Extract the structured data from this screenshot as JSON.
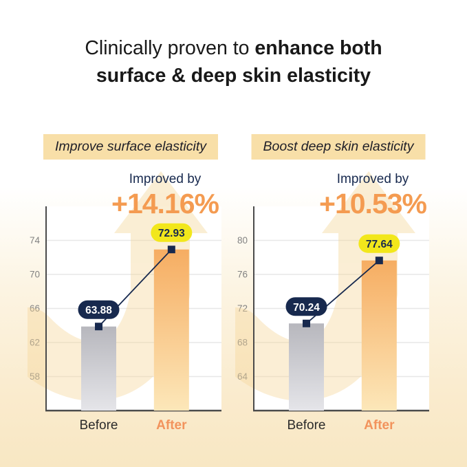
{
  "title": {
    "regular": "Clinically proven to ",
    "bold_suffix": "enhance both",
    "line2": "surface & deep skin elasticity"
  },
  "colors": {
    "accent": "#F2935C",
    "percent_orange": "#F49B51",
    "navy": "#17294E",
    "yellow": "#F2E71B",
    "chip_bg": "#F8DFA8",
    "plot_bg": "#FFFFFF",
    "gridline": "#E7E7E7",
    "axis": "#4A4A4A",
    "tick_text": "#828282",
    "before_label": "#2B2B2B",
    "arrow": "#F5D79B",
    "bar_before_top": "#B7B7BD",
    "bar_before_bottom": "#E5E5E9",
    "bar_after_top": "#F6AD62",
    "bar_after_bottom": "#FCE7B9"
  },
  "panels": [
    {
      "header": "Improve surface elasticity",
      "improved_label": "Improved by",
      "improvement": "+14.16%",
      "chart_data": {
        "type": "bar",
        "categories": [
          "Before",
          "After"
        ],
        "values": [
          63.88,
          72.93
        ],
        "labels": [
          "63.88",
          "72.93"
        ],
        "yticks": [
          58,
          62,
          66,
          70,
          74
        ],
        "ylim": [
          54,
          78
        ],
        "grid": true,
        "title": "Improve surface elasticity",
        "xlabel": "",
        "ylabel": ""
      }
    },
    {
      "header": "Boost deep skin elasticity",
      "improved_label": "Improved by",
      "improvement": "+10.53%",
      "chart_data": {
        "type": "bar",
        "categories": [
          "Before",
          "After"
        ],
        "values": [
          70.24,
          77.64
        ],
        "labels": [
          "70.24",
          "77.64"
        ],
        "yticks": [
          64,
          68,
          72,
          76,
          80
        ],
        "ylim": [
          60,
          84
        ],
        "grid": true,
        "title": "Boost deep skin elasticity",
        "xlabel": "",
        "ylabel": ""
      }
    }
  ]
}
